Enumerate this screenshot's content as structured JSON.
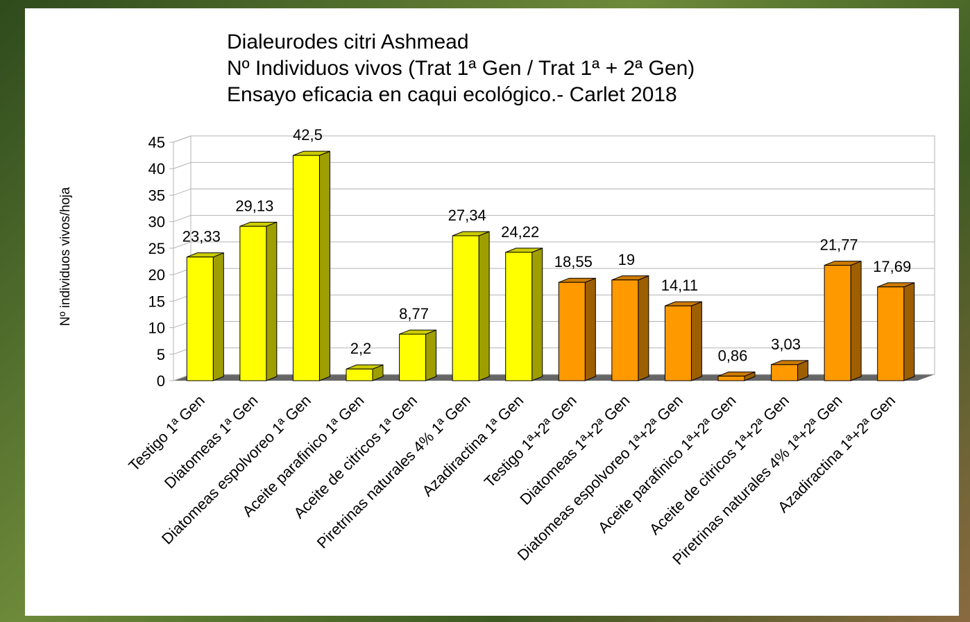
{
  "chart_data": {
    "type": "bar3d",
    "title": [
      "Dialeurodes citri Ashmead",
      "Nº Individuos vivos (Trat 1ª Gen / Trat 1ª + 2ª Gen)",
      "Ensayo eficacia en caqui ecológico.- Carlet 2018"
    ],
    "y_label": "Nº individuos vivos/hoja",
    "categories": [
      "Testigo 1ª Gen",
      "Diatomeas 1ª Gen",
      "Diatomeas espolvoreo 1ª Gen",
      "Aceite parafinico 1ª Gen",
      "Aceite de citricos 1ª Gen",
      "Piretrinas naturales 4% 1ª Gen",
      "Azadiractina 1ª Gen",
      "Testigo 1ª+2ª Gen",
      "Diatomeas 1ª+2ª Gen",
      "Diatomeas espolvoreo 1ª+2ª Gen",
      "Aceite parafinico 1ª+2ª Gen",
      "Aceite de citricos 1ª+2ª Gen",
      "Piretrinas naturales 4% 1ª+2ª Gen",
      "Azadiractina 1ª+2ª Gen"
    ],
    "values": [
      23.33,
      29.13,
      42.5,
      2.2,
      8.77,
      27.34,
      24.22,
      18.55,
      19,
      14.11,
      0.86,
      3.03,
      21.77,
      17.69
    ],
    "value_labels": [
      "23,33",
      "29,13",
      "42,5",
      "2,2",
      "8,77",
      "27,34",
      "24,22",
      "18,55",
      "19",
      "14,11",
      "0,86",
      "3,03",
      "21,77",
      "17,69"
    ],
    "colors": [
      "#ffff00",
      "#ffff00",
      "#ffff00",
      "#ffff00",
      "#ffff00",
      "#ffff00",
      "#ffff00",
      "#ff9900",
      "#ff9900",
      "#ff9900",
      "#ff9900",
      "#ff9900",
      "#ff9900",
      "#ff9900"
    ],
    "ylim": [
      0,
      45
    ],
    "yticks": [
      0,
      5,
      10,
      15,
      20,
      25,
      30,
      35,
      40,
      45
    ],
    "grid": true
  }
}
